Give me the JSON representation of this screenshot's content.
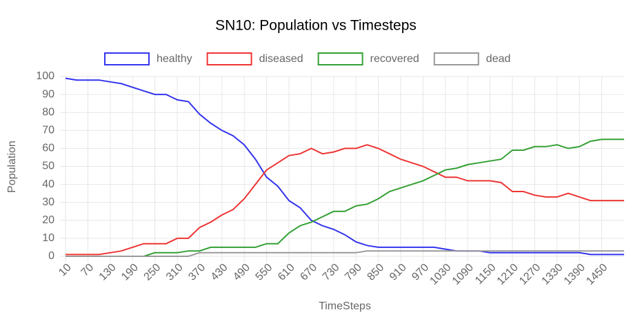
{
  "chart_data": {
    "type": "line",
    "title": "SN10: Population vs Timesteps",
    "x_label": "TimeSteps",
    "y_label": "Population",
    "x": [
      10,
      40,
      70,
      100,
      130,
      160,
      190,
      220,
      250,
      280,
      310,
      340,
      370,
      400,
      430,
      460,
      490,
      520,
      550,
      580,
      610,
      640,
      670,
      700,
      730,
      760,
      790,
      820,
      850,
      880,
      910,
      940,
      970,
      1000,
      1030,
      1060,
      1090,
      1120,
      1150,
      1180,
      1210,
      1240,
      1270,
      1300,
      1330,
      1360,
      1390,
      1420,
      1450,
      1480,
      1510
    ],
    "series": [
      {
        "name": "healthy",
        "color": "#3333ee",
        "values": [
          99,
          98,
          98,
          98,
          97,
          96,
          94,
          92,
          90,
          90,
          87,
          86,
          79,
          74,
          70,
          67,
          62,
          54,
          44,
          39,
          31,
          27,
          20,
          17,
          15,
          12,
          8,
          6,
          5,
          5,
          5,
          5,
          5,
          5,
          4,
          3,
          3,
          3,
          2,
          2,
          2,
          2,
          2,
          2,
          2,
          2,
          2,
          1,
          1,
          1,
          1
        ]
      },
      {
        "name": "diseased",
        "color": "#ee3333",
        "values": [
          1,
          1,
          1,
          1,
          2,
          3,
          5,
          7,
          7,
          7,
          10,
          10,
          16,
          19,
          23,
          26,
          32,
          40,
          48,
          52,
          56,
          57,
          60,
          57,
          58,
          60,
          60,
          62,
          60,
          57,
          54,
          52,
          50,
          47,
          44,
          44,
          42,
          42,
          42,
          41,
          36,
          36,
          34,
          33,
          33,
          35,
          33,
          31,
          31,
          31,
          31
        ]
      },
      {
        "name": "recovered",
        "color": "#33a033",
        "values": [
          0,
          0,
          0,
          0,
          0,
          0,
          0,
          0,
          2,
          2,
          2,
          3,
          3,
          5,
          5,
          5,
          5,
          5,
          7,
          7,
          13,
          17,
          19,
          22,
          25,
          25,
          28,
          29,
          32,
          36,
          38,
          40,
          42,
          45,
          48,
          49,
          51,
          52,
          53,
          54,
          59,
          59,
          61,
          61,
          62,
          60,
          61,
          64,
          65,
          65,
          65
        ]
      },
      {
        "name": "dead",
        "color": "#999999",
        "values": [
          0,
          0,
          0,
          0,
          0,
          0,
          0,
          0,
          0,
          0,
          0,
          0,
          2,
          2,
          2,
          2,
          2,
          2,
          2,
          2,
          2,
          2,
          2,
          2,
          2,
          2,
          2,
          3,
          3,
          3,
          3,
          3,
          3,
          3,
          3,
          3,
          3,
          3,
          3,
          3,
          3,
          3,
          3,
          3,
          3,
          3,
          3,
          3,
          3,
          3,
          3
        ]
      }
    ],
    "xlim": [
      10,
      1510
    ],
    "ylim": [
      0,
      100
    ],
    "xticks": [
      10,
      70,
      130,
      190,
      250,
      310,
      370,
      430,
      490,
      550,
      610,
      670,
      730,
      790,
      850,
      910,
      970,
      1030,
      1090,
      1150,
      1210,
      1270,
      1330,
      1390,
      1450
    ],
    "yticks": [
      0,
      10,
      20,
      30,
      40,
      50,
      60,
      70,
      80,
      90,
      100
    ],
    "grid": true,
    "legend": "top"
  }
}
